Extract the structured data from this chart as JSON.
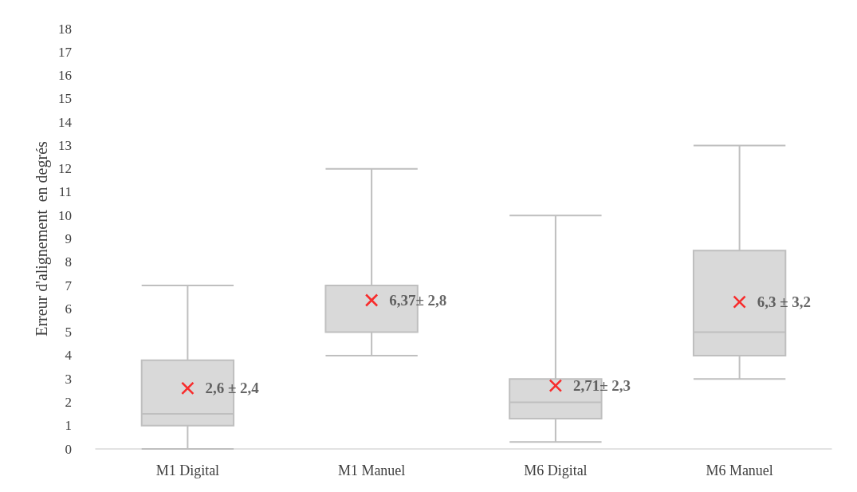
{
  "chart_data": {
    "type": "box",
    "ylabel": "Erreur d'alignement  en degrés",
    "categories": [
      "M1 Digital",
      "M1 Manuel",
      "M6 Digital",
      "M6 Manuel"
    ],
    "series": [
      {
        "color": "#d9d9d9",
        "boxes": [
          {
            "low": 0,
            "q1": 1,
            "median": 1.5,
            "q3": 3.8,
            "high": 7,
            "mean": 2.6
          },
          {
            "low": 4,
            "q1": 5,
            "median": 5,
            "q3": 7,
            "high": 12,
            "mean": 6.37
          },
          {
            "low": 0.3,
            "q1": 1.3,
            "median": 2,
            "q3": 3,
            "high": 10,
            "mean": 2.71
          },
          {
            "low": 3,
            "q1": 4,
            "median": 5,
            "q3": 8.5,
            "high": 13,
            "mean": 6.3
          }
        ]
      }
    ],
    "ylim": [
      0,
      18
    ],
    "yticks": [
      0,
      1,
      2,
      3,
      4,
      5,
      6,
      7,
      8,
      9,
      10,
      11,
      12,
      13,
      14,
      15,
      16,
      17,
      18
    ],
    "grid": false,
    "annotations": [
      "2,6 ± 2,4",
      "6,37± 2,8",
      "2,71± 2,3",
      "6,3 ± 3,2"
    ]
  }
}
